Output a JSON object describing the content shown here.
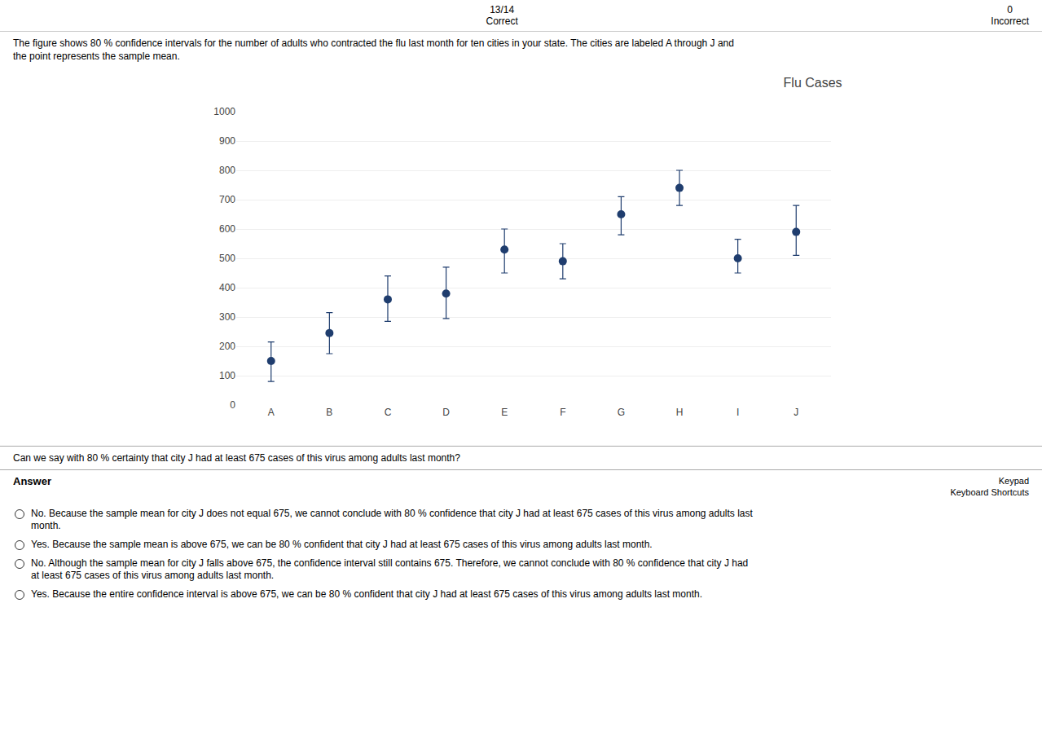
{
  "chart_data": {
    "type": "scatter",
    "title": "Flu Cases",
    "categories": [
      "A",
      "B",
      "C",
      "D",
      "E",
      "F",
      "G",
      "H",
      "I",
      "J"
    ],
    "values": [
      150,
      245,
      360,
      380,
      530,
      490,
      650,
      740,
      500,
      590
    ],
    "ci_lower": [
      80,
      175,
      285,
      295,
      450,
      430,
      580,
      680,
      450,
      510
    ],
    "ci_upper": [
      215,
      315,
      440,
      470,
      600,
      550,
      710,
      800,
      565,
      680
    ],
    "color": "#1f3d6e",
    "ylim": [
      0,
      1000
    ],
    "yticks": [
      0,
      100,
      200,
      300,
      400,
      500,
      600,
      700,
      800,
      900,
      1000
    ],
    "grid": true,
    "annotations": [
      "13/14",
      "Correct",
      "0",
      "Incorrect",
      "The figure shows 80 % confidence intervals for the number of adults who contracted the flu last month for ten cities in your state. The cities are labeled A through J and",
      "the point represents the sample mean.",
      "Can we say with 80 % certainty that city J had at least 675 cases of this virus among adults last month?",
      "Answer",
      "Keypad",
      "Keyboard Shortcuts",
      "No. Because the sample mean for city J does not equal 675, we cannot conclude with 80 % confidence that city J had at least 675 cases of this virus among adults last\nmonth.",
      "Yes. Because the sample mean is above 675, we can be 80 % confident that city J had at least 675 cases of this virus among adults last month.",
      "No. Although the sample mean for city J falls above 675, the confidence interval still contains 675. Therefore, we cannot conclude with 80 % confidence that city J had\nat least 675 cases of this virus among adults last month.",
      "Yes. Because the entire confidence interval is above 675, we can be 80 % confident that city J had at least 675 cases of this virus among adults last month."
    ]
  }
}
